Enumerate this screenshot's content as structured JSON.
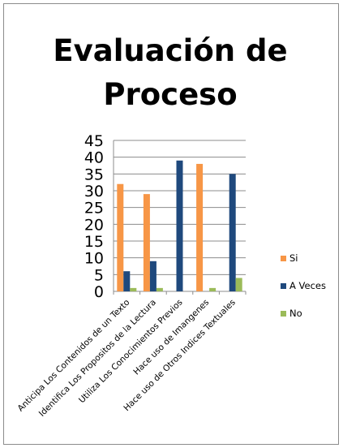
{
  "chart_data": {
    "type": "bar",
    "title": "Evaluación de\nProceso",
    "categories": [
      "Anticipa  Los Contenidos  de un Texto",
      "Identifica  Los Propositos  de la Lectura",
      "Utiliza Los Conocimientos  Previos",
      "Hace uso de Imangenes",
      "Hace uso de Otros Indices  Textuales"
    ],
    "series": [
      {
        "name": "Si",
        "values": [
          32,
          29,
          0,
          38,
          0
        ],
        "color": "#f79646"
      },
      {
        "name": "A Veces",
        "values": [
          6,
          9,
          39,
          0,
          35
        ],
        "color": "#1f497d"
      },
      {
        "name": "No",
        "values": [
          1,
          1,
          0,
          1,
          4
        ],
        "color": "#9bbb59"
      }
    ],
    "ylim": [
      0,
      45
    ],
    "yticks": [
      0,
      5,
      10,
      15,
      20,
      25,
      30,
      35,
      40,
      45
    ],
    "grid": true,
    "legend_position": "right"
  }
}
